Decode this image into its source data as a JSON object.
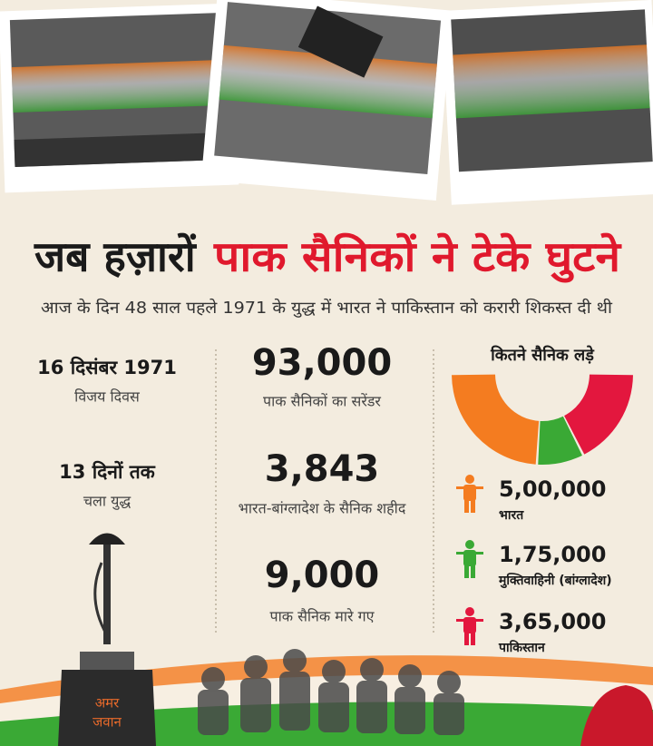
{
  "header": {
    "title_black": "जब हज़ारों",
    "title_red": "पाक सैनिकों ने टेके घुटने",
    "subtitle": "आज के दिन 48 साल पहले 1971 के युद्ध में भारत ने पाकिस्तान को करारी शिकस्त दी थी"
  },
  "left_stats": [
    {
      "value": "16 दिसंबर 1971",
      "label": "विजय दिवस"
    },
    {
      "value": "13 दिनों तक",
      "label": "चला युद्ध"
    }
  ],
  "middle_stats": [
    {
      "value": "93,000",
      "label": "पाक सैनिकों का सरेंडर"
    },
    {
      "value": "3,843",
      "label": "भारत-बांग्लादेश के सैनिक शहीद"
    },
    {
      "value": "9,000",
      "label": "पाक सैनिक मारे गए"
    }
  ],
  "memorial": {
    "line1": "अमर",
    "line2": "जवान"
  },
  "chart_data": {
    "type": "pie",
    "title": "कितने सैनिक लड़े",
    "categories": [
      "भारत",
      "मुक्तिवाहिनी (बांग्लादेश)",
      "पाकिस्तान"
    ],
    "values": [
      500000,
      175000,
      365000
    ],
    "value_labels": [
      "5,00,000",
      "1,75,000",
      "3,65,000"
    ],
    "colors": [
      "#f47c20",
      "#3aa935",
      "#e3173e"
    ]
  }
}
